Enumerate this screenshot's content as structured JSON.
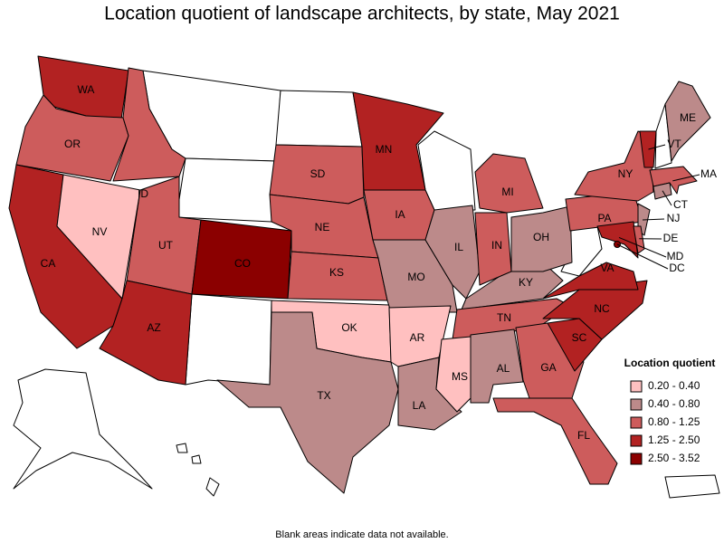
{
  "title": "Location quotient of landscape architects, by state, May 2021",
  "legend": {
    "title": "Location quotient",
    "items": [
      {
        "label": "0.20 - 0.40",
        "color": "#ffc0c0"
      },
      {
        "label": "0.40 - 0.80",
        "color": "#bc8a8a"
      },
      {
        "label": "0.80 - 1.25",
        "color": "#cd5c5c"
      },
      {
        "label": "1.25 - 2.50",
        "color": "#b22222"
      },
      {
        "label": "2.50 - 3.52",
        "color": "#8b0000"
      }
    ]
  },
  "states": [
    {
      "label": "WA",
      "color": "#b22222"
    },
    {
      "label": "OR",
      "color": "#cd5c5c"
    },
    {
      "label": "CA",
      "color": "#b22222"
    },
    {
      "label": "NV",
      "color": "#ffc0c0"
    },
    {
      "label": "ID",
      "color": "#cd5c5c"
    },
    {
      "label": "UT",
      "color": "#cd5c5c"
    },
    {
      "label": "AZ",
      "color": "#b22222"
    },
    {
      "label": "CO",
      "color": "#8b0000"
    },
    {
      "label": "SD",
      "color": "#cd5c5c"
    },
    {
      "label": "NE",
      "color": "#cd5c5c"
    },
    {
      "label": "KS",
      "color": "#cd5c5c"
    },
    {
      "label": "OK",
      "color": "#ffc0c0"
    },
    {
      "label": "TX",
      "color": "#bc8a8a"
    },
    {
      "label": "MN",
      "color": "#b22222"
    },
    {
      "label": "IA",
      "color": "#cd5c5c"
    },
    {
      "label": "MO",
      "color": "#bc8a8a"
    },
    {
      "label": "AR",
      "color": "#ffc0c0"
    },
    {
      "label": "LA",
      "color": "#bc8a8a"
    },
    {
      "label": "IL",
      "color": "#bc8a8a"
    },
    {
      "label": "KY",
      "color": "#bc8a8a"
    },
    {
      "label": "TN",
      "color": "#cd5c5c"
    },
    {
      "label": "MS",
      "color": "#ffc0c0"
    },
    {
      "label": "AL",
      "color": "#bc8a8a"
    },
    {
      "label": "IN",
      "color": "#cd5c5c"
    },
    {
      "label": "MI",
      "color": "#cd5c5c"
    },
    {
      "label": "OH",
      "color": "#bc8a8a"
    },
    {
      "label": "GA",
      "color": "#cd5c5c"
    },
    {
      "label": "FL",
      "color": "#cd5c5c"
    },
    {
      "label": "NC",
      "color": "#b22222"
    },
    {
      "label": "SC",
      "color": "#b22222"
    },
    {
      "label": "VA",
      "color": "#b22222"
    },
    {
      "label": "PA",
      "color": "#cd5c5c"
    },
    {
      "label": "NY",
      "color": "#cd5c5c"
    },
    {
      "label": "ME",
      "color": "#bc8a8a"
    },
    {
      "label": "VT",
      "color": "#b22222"
    },
    {
      "label": "MA",
      "color": "#cd5c5c"
    },
    {
      "label": "CT",
      "color": "#bc8a8a"
    },
    {
      "label": "NJ",
      "color": "#bc8a8a"
    },
    {
      "label": "MD",
      "color": "#b22222"
    },
    {
      "label": "DE",
      "color": "#cd5c5c"
    },
    {
      "label": "DC",
      "color": "#8b0000"
    }
  ],
  "note": "Blank areas indicate data not available."
}
